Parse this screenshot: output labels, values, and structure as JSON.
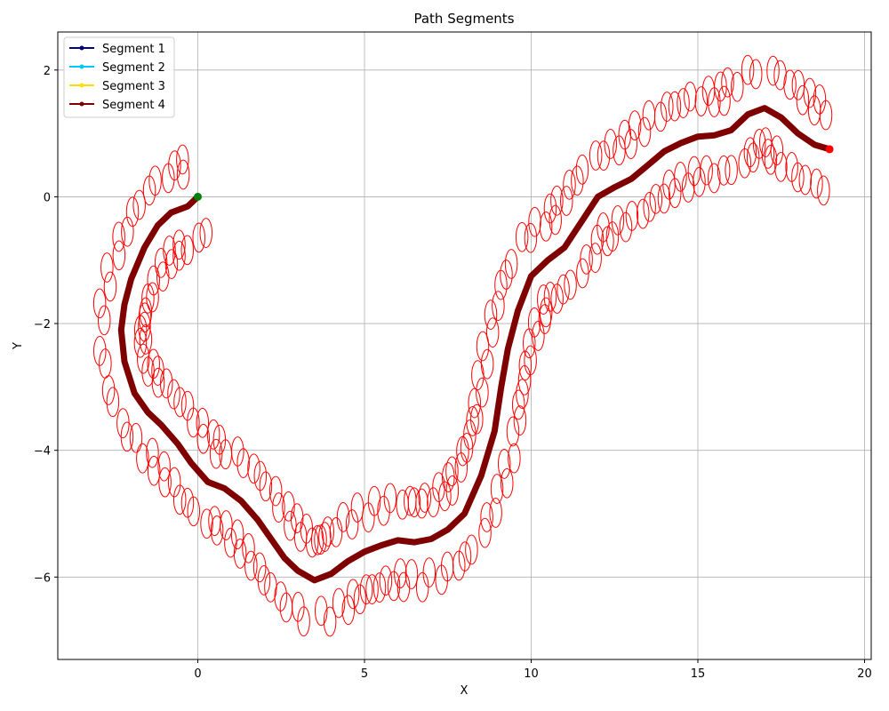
{
  "chart_data": {
    "type": "line",
    "title": "Path Segments",
    "xlabel": "X",
    "ylabel": "Y",
    "xlim": [
      -4.2,
      20.2
    ],
    "ylim": [
      -7.3,
      2.6
    ],
    "xticks": [
      0,
      5,
      10,
      15,
      20
    ],
    "yticks": [
      2,
      0,
      -2,
      -4,
      -6
    ],
    "xtick_labels": [
      "0",
      "5",
      "10",
      "15",
      "20"
    ],
    "ytick_labels": [
      "2",
      "0",
      "−2",
      "−4",
      "−6"
    ],
    "grid": true,
    "legend_position": "top-left",
    "series": [
      {
        "name": "Segment 1",
        "color": "#000080",
        "points": []
      },
      {
        "name": "Segment 2",
        "color": "#00c8ff",
        "points": []
      },
      {
        "name": "Segment 3",
        "color": "#ffdd00",
        "points": []
      },
      {
        "name": "Segment 4",
        "color": "#7f0000",
        "points": [
          [
            0,
            0
          ],
          [
            -0.3,
            -0.15
          ],
          [
            -0.8,
            -0.25
          ],
          [
            -1.2,
            -0.45
          ],
          [
            -1.6,
            -0.8
          ],
          [
            -2.0,
            -1.3
          ],
          [
            -2.2,
            -1.7
          ],
          [
            -2.3,
            -2.1
          ],
          [
            -2.2,
            -2.6
          ],
          [
            -1.9,
            -3.1
          ],
          [
            -1.5,
            -3.4
          ],
          [
            -1.1,
            -3.6
          ],
          [
            -0.6,
            -3.9
          ],
          [
            -0.2,
            -4.2
          ],
          [
            0.3,
            -4.5
          ],
          [
            0.8,
            -4.6
          ],
          [
            1.3,
            -4.8
          ],
          [
            1.8,
            -5.1
          ],
          [
            2.2,
            -5.4
          ],
          [
            2.6,
            -5.7
          ],
          [
            3.0,
            -5.9
          ],
          [
            3.5,
            -6.05
          ],
          [
            4.0,
            -5.95
          ],
          [
            4.5,
            -5.75
          ],
          [
            5.0,
            -5.6
          ],
          [
            5.5,
            -5.5
          ],
          [
            6.0,
            -5.42
          ],
          [
            6.5,
            -5.45
          ],
          [
            7.0,
            -5.4
          ],
          [
            7.5,
            -5.25
          ],
          [
            8.0,
            -5.0
          ],
          [
            8.5,
            -4.4
          ],
          [
            8.9,
            -3.7
          ],
          [
            9.1,
            -3.0
          ],
          [
            9.3,
            -2.4
          ],
          [
            9.6,
            -1.8
          ],
          [
            10.0,
            -1.25
          ],
          [
            10.5,
            -1.0
          ],
          [
            11.0,
            -0.8
          ],
          [
            11.5,
            -0.4
          ],
          [
            12.0,
            0.0
          ],
          [
            12.5,
            0.15
          ],
          [
            13.0,
            0.28
          ],
          [
            13.5,
            0.5
          ],
          [
            14.0,
            0.72
          ],
          [
            14.5,
            0.85
          ],
          [
            15.0,
            0.95
          ],
          [
            15.5,
            0.97
          ],
          [
            16.0,
            1.05
          ],
          [
            16.5,
            1.3
          ],
          [
            17.0,
            1.4
          ],
          [
            17.5,
            1.25
          ],
          [
            18.0,
            1.0
          ],
          [
            18.5,
            0.82
          ],
          [
            18.95,
            0.75
          ]
        ]
      }
    ],
    "start_point": [
      0,
      0
    ],
    "end_point": [
      18.95,
      0.75
    ],
    "start_color": "#008000",
    "end_color": "#ff0000",
    "ellipse_color": "#ff0000",
    "ellipse_offset": 0.62,
    "ellipse_radii": [
      0.18,
      0.23
    ],
    "ellipse_count": 260
  }
}
